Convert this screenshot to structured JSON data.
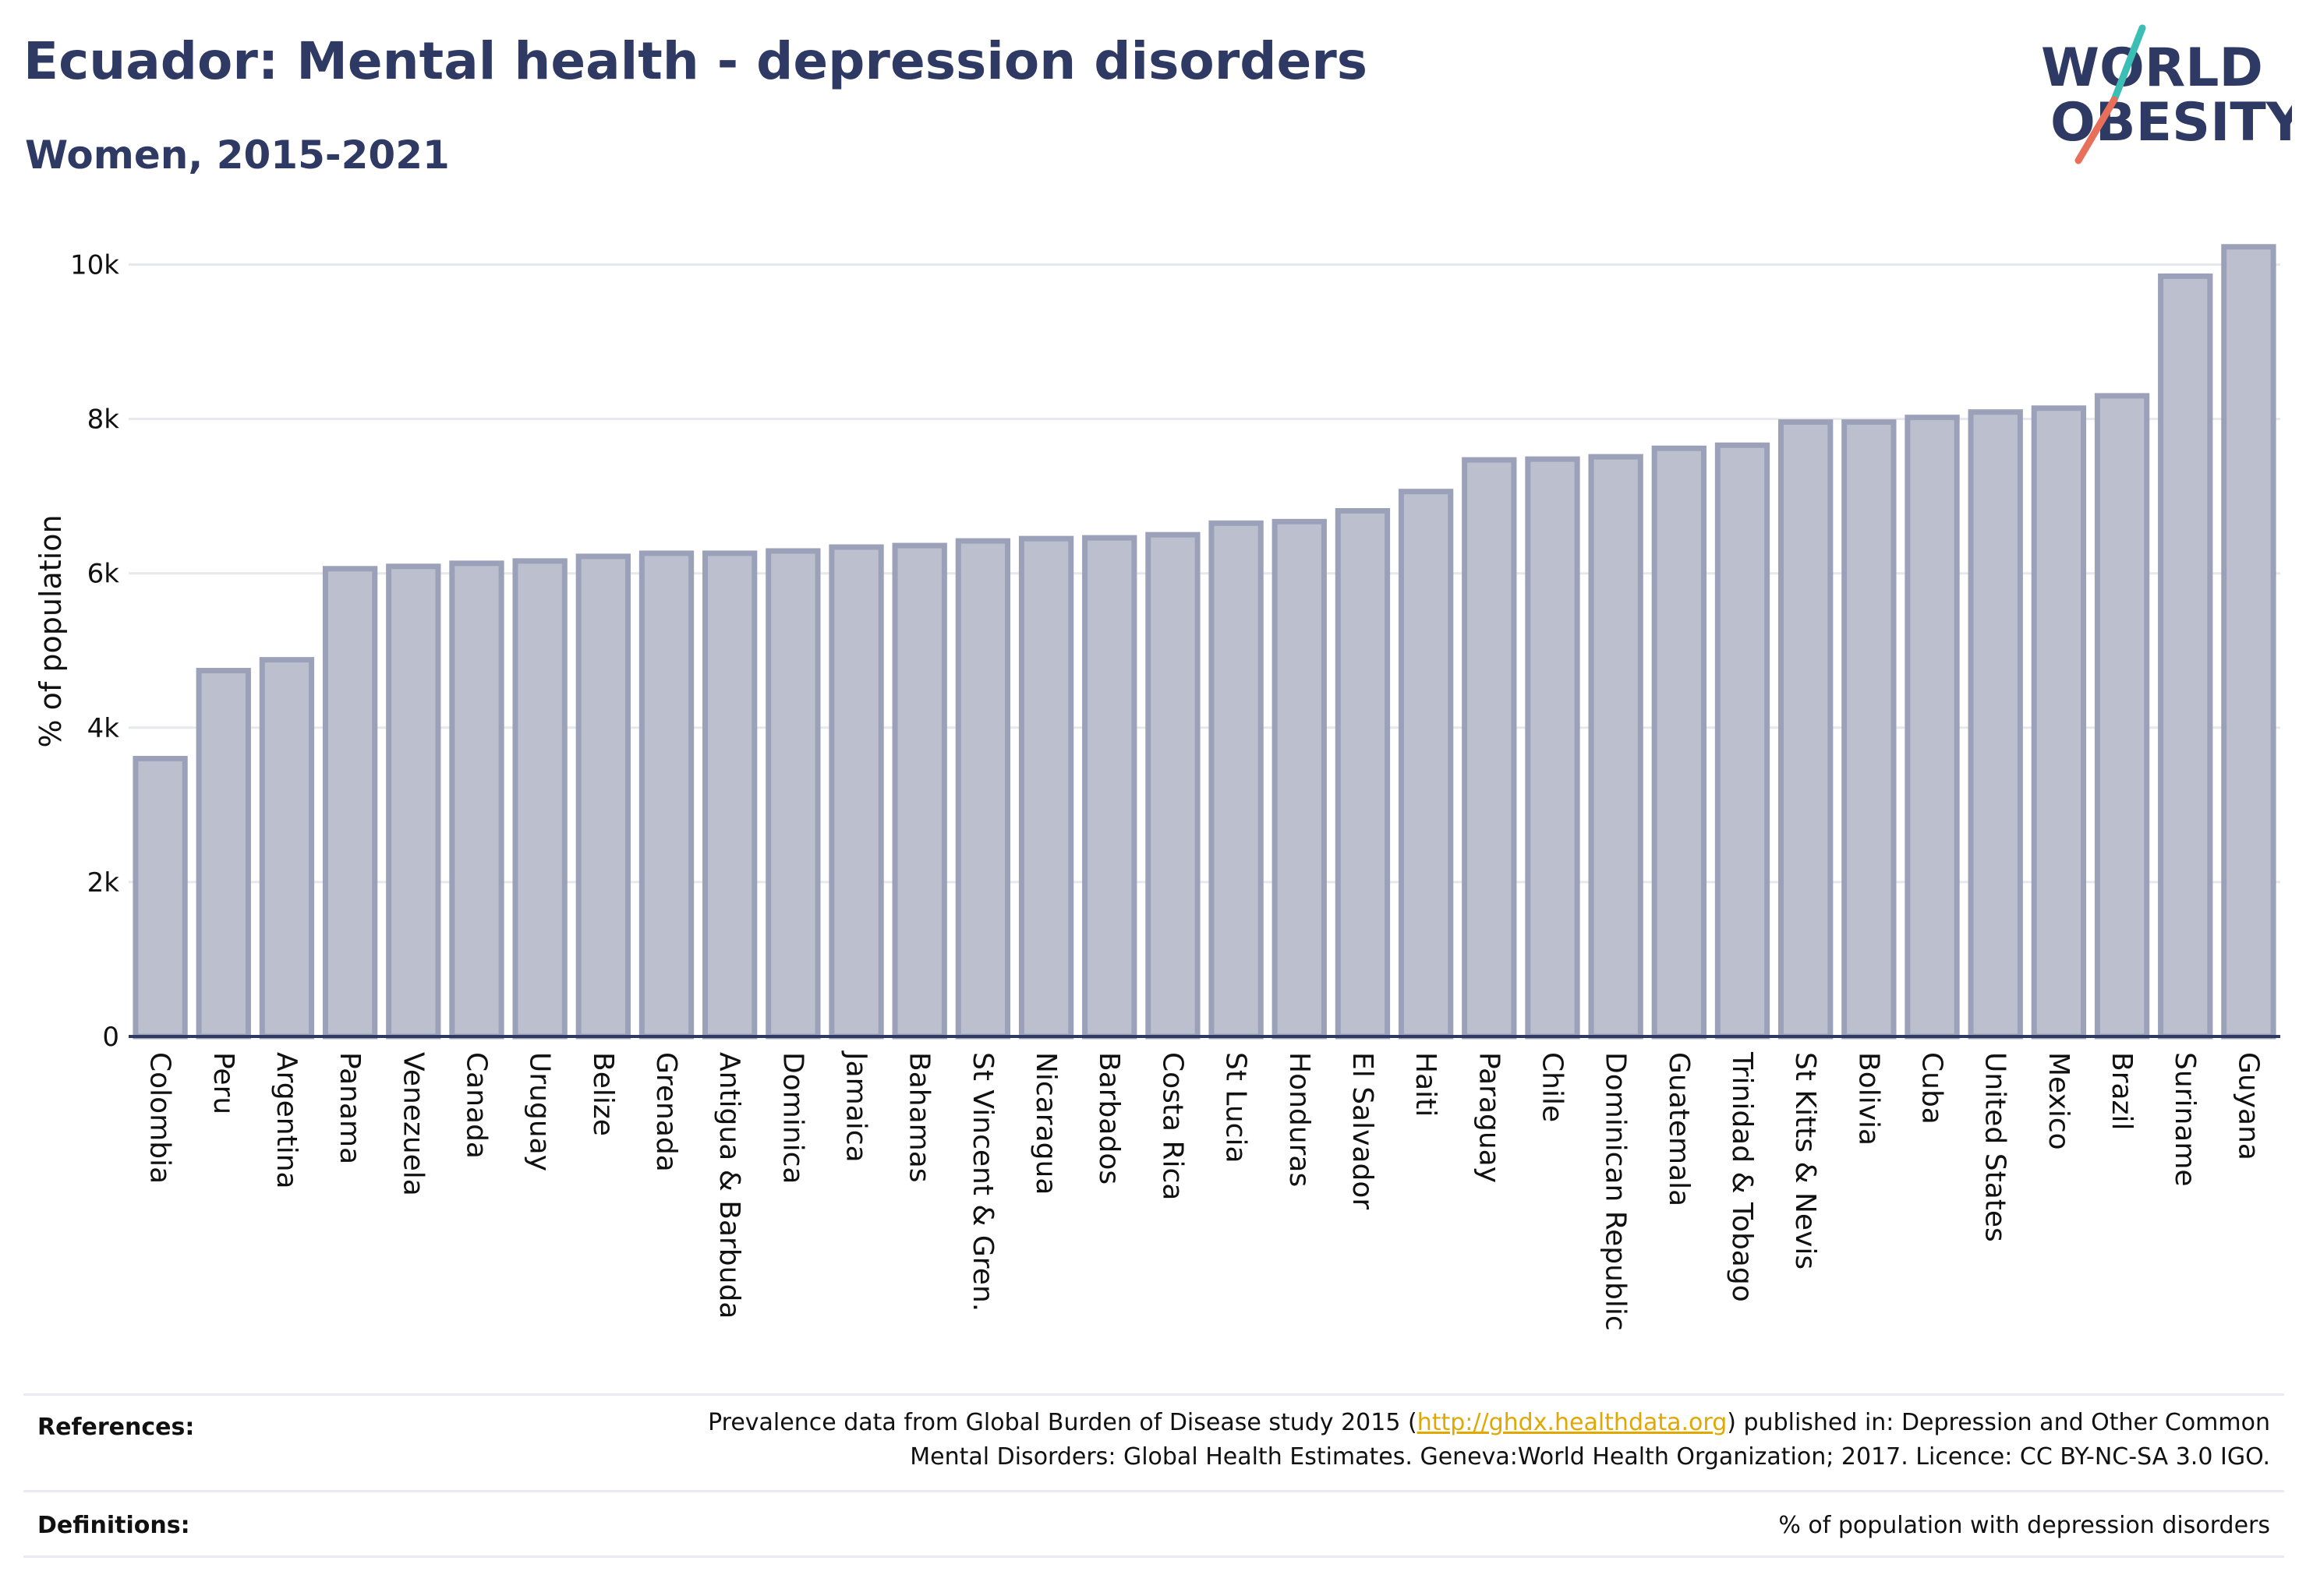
{
  "header": {
    "title": "Ecuador: Mental health - depression disorders",
    "subtitle": "Women, 2015-2021"
  },
  "logo": {
    "line1": "WORLD",
    "line2": "OBESITY",
    "colors": {
      "text": "#2e3a63",
      "slash_teal": "#3bbfb5",
      "slash_coral": "#e8705a"
    }
  },
  "chart_data": {
    "type": "bar",
    "title": "Ecuador: Mental health - depression disorders",
    "subtitle": "Women, 2015-2021",
    "xlabel": "",
    "ylabel": "% of population",
    "ylim": [
      0,
      10500
    ],
    "yticks": [
      0,
      2000,
      4000,
      6000,
      8000,
      10000
    ],
    "ytick_labels": [
      "0",
      "2k",
      "4k",
      "6k",
      "8k",
      "10k"
    ],
    "grid": true,
    "legend": "none",
    "bar_fill": "#bcc0ce",
    "bar_stroke": "#9ba1b8",
    "categories": [
      "Colombia",
      "Peru",
      "Argentina",
      "Panama",
      "Venezuela",
      "Canada",
      "Uruguay",
      "Belize",
      "Grenada",
      "Antigua & Barbuda",
      "Dominica",
      "Jamaica",
      "Bahamas",
      "St Vincent & Gren.",
      "Nicaragua",
      "Barbados",
      "Costa Rica",
      "St Lucia",
      "Honduras",
      "El Salvador",
      "Haiti",
      "Paraguay",
      "Chile",
      "Dominican Republic",
      "Guatemala",
      "Trinidad & Tobago",
      "St Kitts & Nevis",
      "Bolivia",
      "Cuba",
      "United States",
      "Mexico",
      "Brazil",
      "Suriname",
      "Guyana"
    ],
    "values": [
      3600,
      4740,
      4880,
      6060,
      6090,
      6130,
      6160,
      6220,
      6260,
      6260,
      6290,
      6340,
      6360,
      6420,
      6450,
      6460,
      6500,
      6650,
      6670,
      6810,
      7060,
      7470,
      7480,
      7510,
      7620,
      7660,
      7960,
      7960,
      8020,
      8090,
      8140,
      8300,
      9850,
      10230
    ]
  },
  "references": {
    "label": "References:",
    "line1_before": "Prevalence data from Global Burden of Disease study 2015 (",
    "link": "http://ghdx.healthdata.org",
    "line1_after": ") published in: Depression and Other Common",
    "line2": "Mental Disorders: Global Health Estimates. Geneva:World Health Organization; 2017. Licence: CC BY-NC-SA 3.0 IGO."
  },
  "definitions": {
    "label": "Definitions:",
    "text": "% of population with depression disorders"
  }
}
